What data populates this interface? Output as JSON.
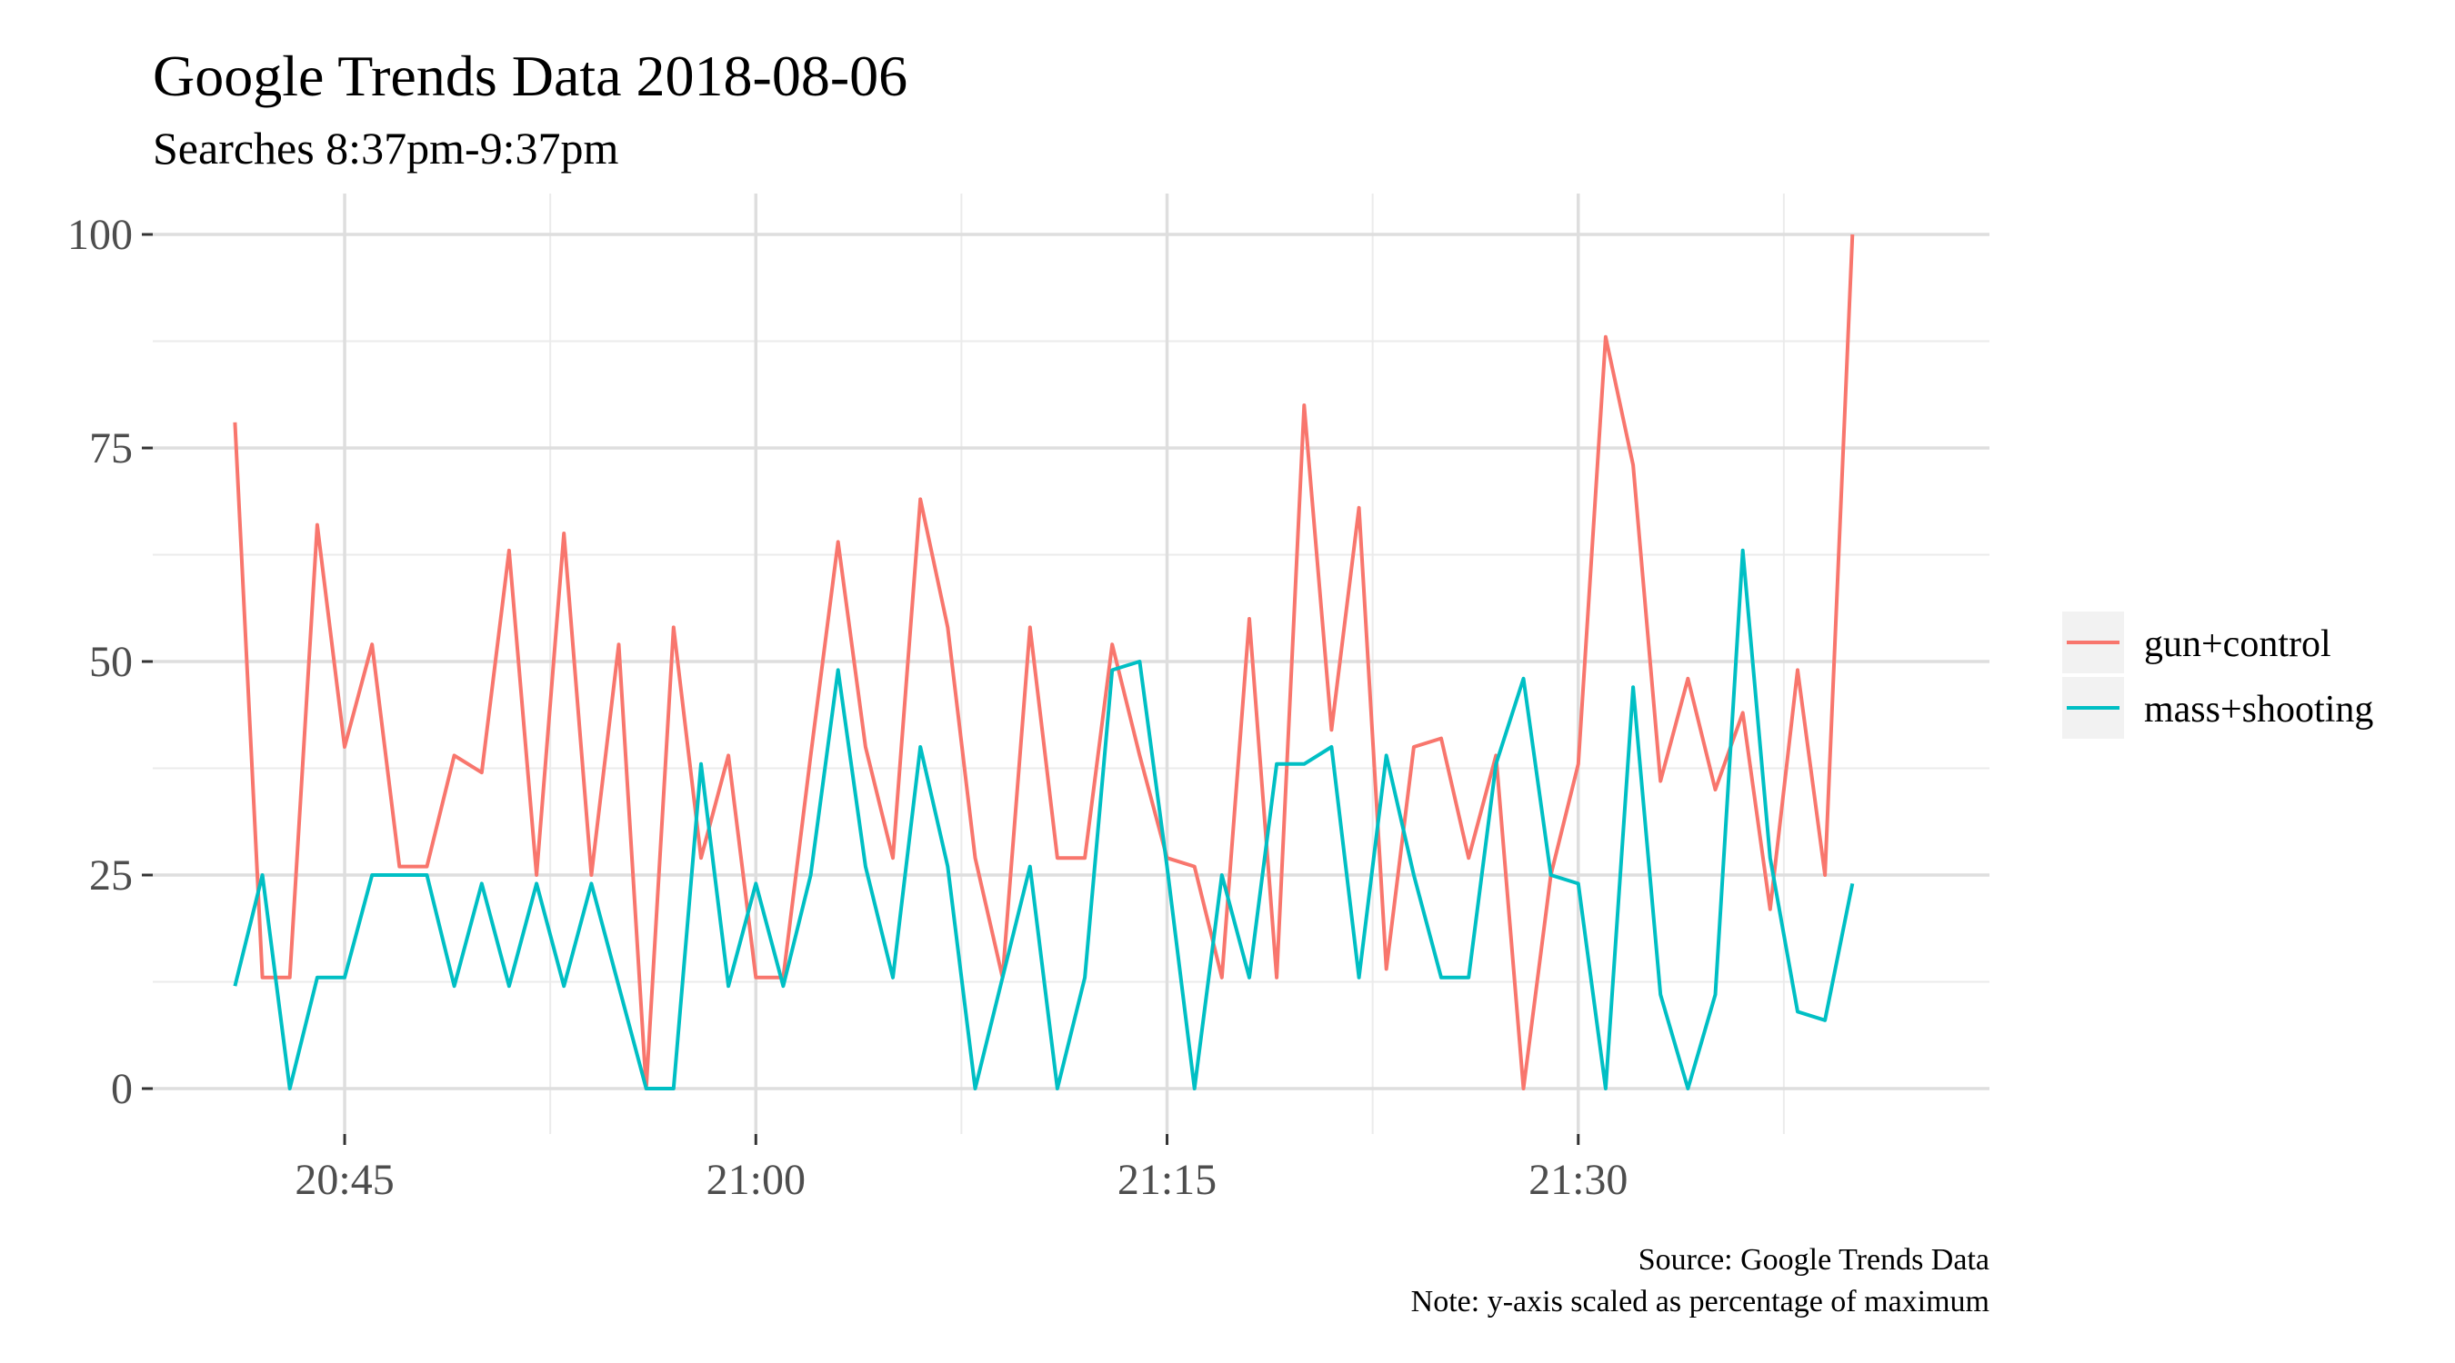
{
  "chart_data": {
    "type": "line",
    "title": "Google Trends Data 2018-08-06",
    "subtitle": "Searches 8:37pm-9:37pm",
    "xlabel": "",
    "ylabel": "",
    "ylim": [
      0,
      100
    ],
    "xlim": [
      "20:38",
      "21:45"
    ],
    "x_ticks": [
      "20:45",
      "21:00",
      "21:15",
      "21:30"
    ],
    "y_ticks": [
      0,
      25,
      50,
      75,
      100
    ],
    "y_tick_labels": [
      "0",
      "25",
      "50",
      "75",
      "100"
    ],
    "grid": true,
    "legend_position": "right",
    "x": [
      "20:41",
      "20:42",
      "20:43",
      "20:44",
      "20:45",
      "20:46",
      "20:47",
      "20:48",
      "20:49",
      "20:50",
      "20:51",
      "20:52",
      "20:53",
      "20:54",
      "20:55",
      "20:56",
      "20:57",
      "20:58",
      "20:59",
      "21:00",
      "21:01",
      "21:02",
      "21:03",
      "21:04",
      "21:05",
      "21:06",
      "21:07",
      "21:08",
      "21:09",
      "21:10",
      "21:11",
      "21:12",
      "21:13",
      "21:14",
      "21:15",
      "21:16",
      "21:17",
      "21:18",
      "21:19",
      "21:20",
      "21:21",
      "21:22",
      "21:23",
      "21:24",
      "21:25",
      "21:26",
      "21:27",
      "21:28",
      "21:29",
      "21:30",
      "21:31",
      "21:32",
      "21:33",
      "21:34",
      "21:35",
      "21:36",
      "21:37",
      "21:38",
      "21:39",
      "21:40"
    ],
    "series": [
      {
        "name": "gun+control",
        "color": "#F8766D",
        "values": [
          78,
          13,
          13,
          66,
          40,
          52,
          26,
          26,
          39,
          37,
          63,
          25,
          65,
          25,
          52,
          0,
          54,
          27,
          39,
          13,
          13,
          39,
          64,
          40,
          27,
          69,
          54,
          27,
          13,
          54,
          27,
          27,
          52,
          39,
          27,
          26,
          13,
          55,
          13,
          80,
          42,
          68,
          14,
          40,
          41,
          27,
          39,
          0,
          25,
          38,
          88,
          73,
          36,
          48,
          35,
          44,
          21,
          49,
          25,
          100
        ]
      },
      {
        "name": "mass+shooting",
        "color": "#00BFC4",
        "values": [
          12,
          25,
          0,
          13,
          13,
          25,
          25,
          25,
          12,
          24,
          12,
          24,
          12,
          24,
          12,
          0,
          0,
          38,
          12,
          24,
          12,
          25,
          49,
          26,
          13,
          40,
          26,
          0,
          13,
          26,
          0,
          13,
          49,
          50,
          26,
          0,
          25,
          13,
          38,
          38,
          40,
          13,
          39,
          25,
          13,
          13,
          38,
          48,
          25,
          24,
          0,
          47,
          11,
          0,
          11,
          63,
          27,
          9,
          8,
          24
        ]
      }
    ],
    "caption_lines": [
      "Source: Google Trends Data",
      "Note: y-axis scaled as percentage of maximum"
    ]
  }
}
